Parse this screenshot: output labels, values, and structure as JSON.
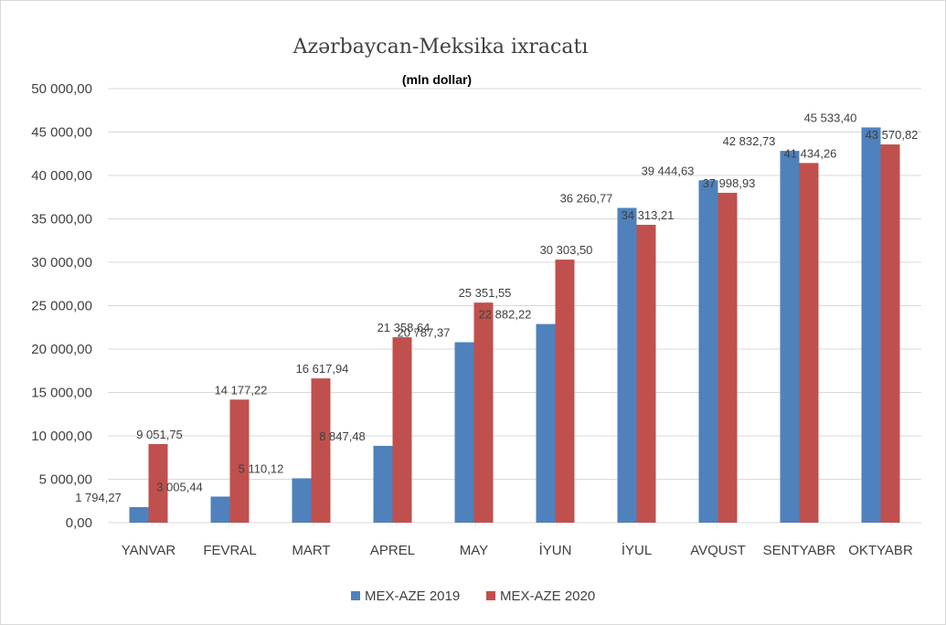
{
  "chart_data": {
    "type": "bar",
    "title": "Azərbaycan-Meksika ixracatı",
    "subtitle": "(mln   dollar)",
    "categories": [
      "YANVAR",
      "FEVRAL",
      "MART",
      "APREL",
      "MAY",
      "İYUN",
      "İYUL",
      "AVQUST",
      "SENTYABR",
      "OKTYABR"
    ],
    "series": [
      {
        "name": "MEX-AZE 2019",
        "color": "#4f81bd",
        "values": [
          1794.27,
          3005.44,
          5110.12,
          8847.48,
          20787.37,
          22882.22,
          36260.77,
          39444.63,
          42832.73,
          45533.4
        ],
        "labels": [
          "1 794,27",
          "3 005,44",
          "5 110,12",
          "8 847,48",
          "20 787,37",
          "22 882,22",
          "36 260,77",
          "39 444,63",
          "42 832,73",
          "45 533,40"
        ]
      },
      {
        "name": "MEX-AZE 2020",
        "color": "#c0504d",
        "values": [
          9051.75,
          14177.22,
          16617.94,
          21358.64,
          25351.55,
          30303.5,
          34313.21,
          37998.93,
          41434.26,
          43570.82
        ],
        "labels": [
          "9 051,75",
          "14 177,22",
          "16 617,94",
          "21 358,64",
          "25 351,55",
          "30 303,50",
          "34 313,21",
          "37 998,93",
          "41 434,26",
          "43 570,82"
        ]
      }
    ],
    "ylim": [
      0,
      50000
    ],
    "yticks": [
      0,
      5000,
      10000,
      15000,
      20000,
      25000,
      30000,
      35000,
      40000,
      45000,
      50000
    ],
    "ytick_labels": [
      "0,00",
      "5 000,00",
      "10 000,00",
      "15 000,00",
      "20 000,00",
      "25 000,00",
      "30 000,00",
      "35 000,00",
      "40 000,00",
      "45 000,00",
      "50 000,00"
    ],
    "grid": true,
    "legend_position": "bottom"
  }
}
